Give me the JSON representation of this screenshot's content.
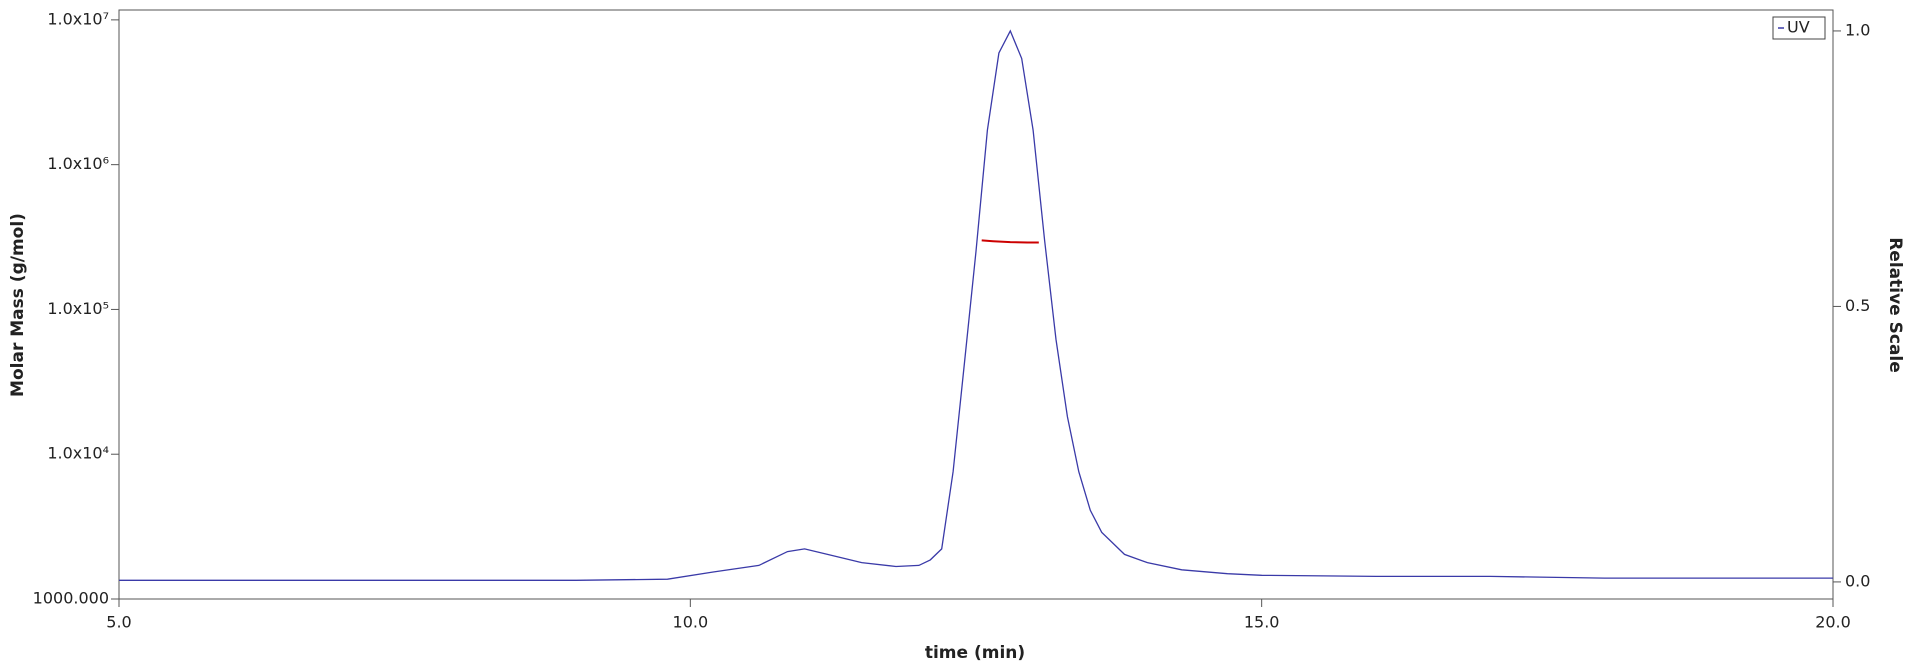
{
  "chart_data": {
    "type": "line",
    "x_label": "time (min)",
    "y_label": "Molar Mass (g/mol)",
    "y2_label": "Relative Scale",
    "log_y": true,
    "xlim": [
      5.0,
      20.0
    ],
    "xticks": [
      {
        "value": 5,
        "label": "5.0"
      },
      {
        "value": 10,
        "label": "10.0"
      },
      {
        "value": 15,
        "label": "15.0"
      },
      {
        "value": 20,
        "label": "20.0"
      }
    ],
    "ylim": [
      1000,
      11700000
    ],
    "yticks": [
      {
        "value": 1000,
        "label": "1000.000"
      },
      {
        "value": 10000,
        "label": "1.0x10⁴"
      },
      {
        "value": 100000,
        "label": "1.0x10⁵"
      },
      {
        "value": 1000000,
        "label": "1.0x10⁶"
      },
      {
        "value": 10000000,
        "label": "1.0x10⁷"
      }
    ],
    "y2lim": [
      -0.031,
      1.038
    ],
    "y2ticks": [
      {
        "value": 0,
        "label": "0.0"
      },
      {
        "value": 0.5,
        "label": "0.5"
      },
      {
        "value": 1,
        "label": "1.0"
      }
    ],
    "legend": "top-right",
    "series": [
      {
        "name": "UV",
        "color": "#3a3aa8",
        "axis": "y2",
        "x": [
          5.0,
          6.0,
          8.0,
          9.0,
          9.8,
          10.2,
          10.6,
          10.85,
          11.0,
          11.2,
          11.5,
          11.8,
          12.0,
          12.1,
          12.2,
          12.3,
          12.4,
          12.5,
          12.6,
          12.7,
          12.8,
          12.9,
          13.0,
          13.1,
          13.2,
          13.3,
          13.4,
          13.5,
          13.6,
          13.8,
          14.0,
          14.3,
          14.7,
          15.0,
          16.0,
          17.0,
          18.0,
          20.0
        ],
        "values": [
          0.003,
          0.003,
          0.003,
          0.003,
          0.005,
          0.018,
          0.03,
          0.055,
          0.06,
          0.05,
          0.035,
          0.028,
          0.03,
          0.04,
          0.06,
          0.2,
          0.4,
          0.6,
          0.82,
          0.96,
          1.0,
          0.95,
          0.82,
          0.62,
          0.44,
          0.3,
          0.2,
          0.13,
          0.09,
          0.05,
          0.035,
          0.022,
          0.015,
          0.012,
          0.01,
          0.01,
          0.007,
          0.007
        ]
      },
      {
        "color": "#cc0000",
        "axis": "y",
        "x": [
          12.55,
          12.65,
          12.8,
          12.95,
          13.05
        ],
        "values": [
          300000,
          296000,
          292000,
          290000,
          290000
        ]
      }
    ]
  }
}
